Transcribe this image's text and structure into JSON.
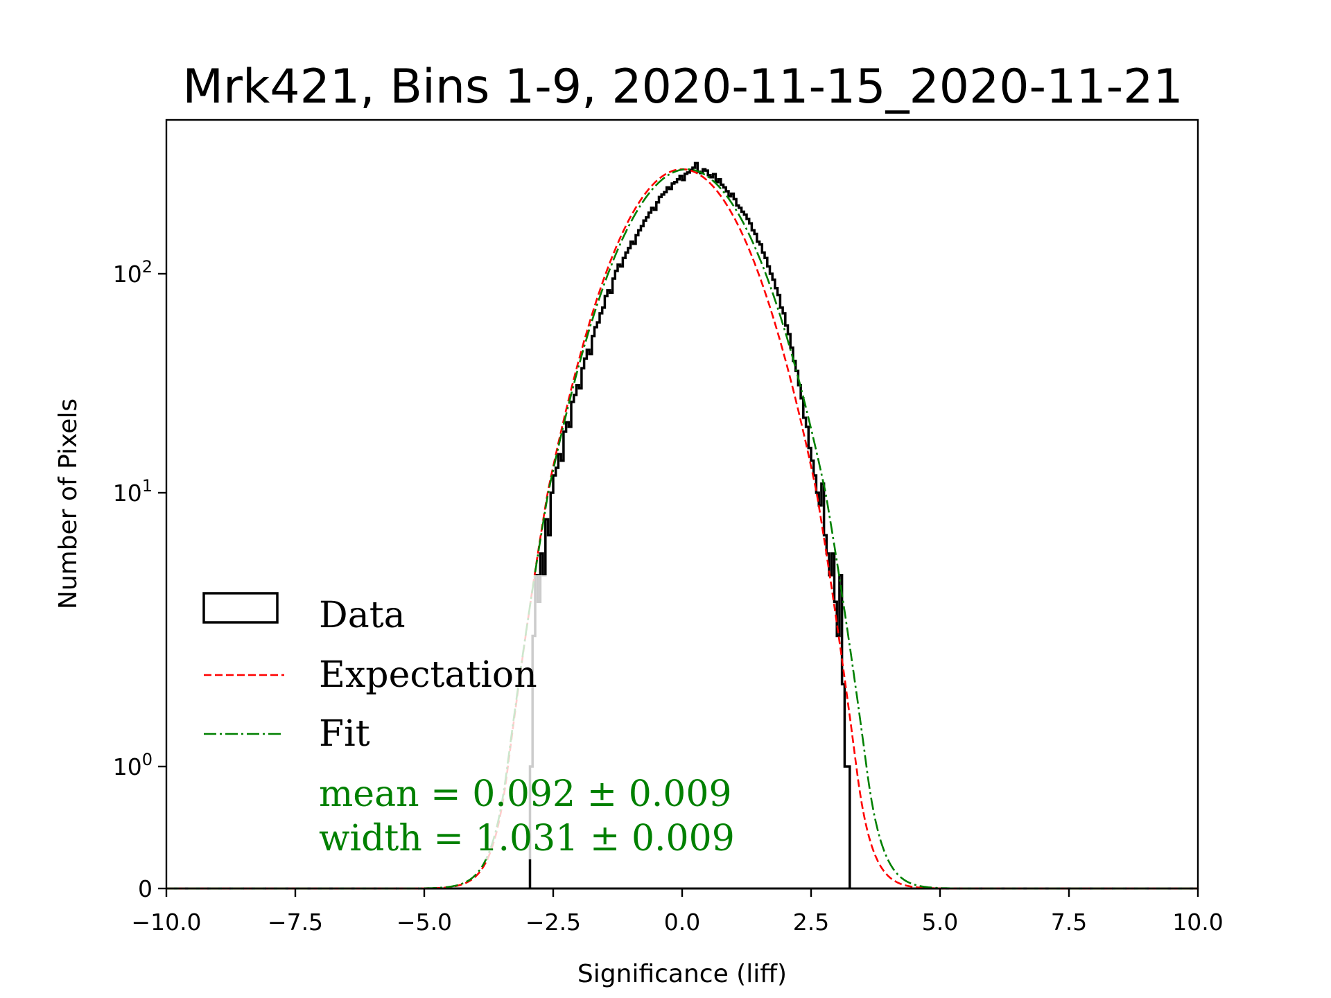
{
  "chart_data": {
    "type": "histogram",
    "title": "Mrk421, Bins 1-9, 2020-11-15_2020-11-21",
    "xlabel": "Significance (liff)",
    "ylabel": "Number of Pixels",
    "xlim": [
      -10,
      10
    ],
    "yscale": "symlog",
    "ylim": [
      0,
      500
    ],
    "grid": false,
    "x_ticks": [
      {
        "value": -10,
        "label": "−10.0"
      },
      {
        "value": -7.5,
        "label": "−7.5"
      },
      {
        "value": -5,
        "label": "−5.0"
      },
      {
        "value": -2.5,
        "label": "−2.5"
      },
      {
        "value": 0,
        "label": "0.0"
      },
      {
        "value": 2.5,
        "label": "2.5"
      },
      {
        "value": 5,
        "label": "5.0"
      },
      {
        "value": 7.5,
        "label": "7.5"
      },
      {
        "value": 10,
        "label": "10.0"
      }
    ],
    "y_ticks": [
      {
        "value": 0,
        "base": "0",
        "exp": ""
      },
      {
        "value": 1,
        "base": "10",
        "exp": "0"
      },
      {
        "value": 10,
        "base": "10",
        "exp": "1"
      },
      {
        "value": 100,
        "base": "10",
        "exp": "2"
      }
    ],
    "histogram": {
      "name": "Data",
      "color": "#000000",
      "bin_start": -2.95,
      "bin_width": 0.05,
      "counts": [
        1,
        3,
        5,
        4,
        6,
        5,
        8,
        7,
        10,
        12,
        13,
        15,
        14,
        19,
        21,
        20,
        26,
        28,
        31,
        30,
        37,
        41,
        45,
        43,
        52,
        57,
        60,
        66,
        70,
        79,
        84,
        82,
        95,
        103,
        110,
        108,
        118,
        125,
        131,
        140,
        137,
        150,
        158,
        165,
        175,
        181,
        190,
        200,
        196,
        212,
        224,
        230,
        236,
        248,
        244,
        258,
        262,
        270,
        280,
        268,
        286,
        290,
        298,
        305,
        320,
        292,
        288,
        300,
        296,
        282,
        276,
        285,
        262,
        270,
        255,
        248,
        238,
        226,
        232,
        219,
        205,
        200,
        192,
        186,
        178,
        170,
        158,
        152,
        140,
        136,
        125,
        118,
        108,
        100,
        94,
        86,
        80,
        70,
        66,
        58,
        53,
        46,
        40,
        36,
        31,
        27,
        22,
        20,
        16,
        14,
        12,
        10,
        9,
        11,
        7,
        6,
        5,
        6,
        4,
        3,
        5,
        2,
        1,
        1
      ]
    },
    "series": [
      {
        "name": "Expectation",
        "color": "#ff0000",
        "style": "dashed",
        "mean": 0.0,
        "width": 1.0,
        "amplitude": 300
      },
      {
        "name": "Fit",
        "color": "#008000",
        "style": "dashdot",
        "mean": 0.092,
        "width": 1.031,
        "amplitude": 300
      }
    ],
    "legend": {
      "placement": "lower-left",
      "entries": [
        {
          "label": "Data",
          "kind": "box"
        },
        {
          "label": "Expectation",
          "kind": "dashed"
        },
        {
          "label": "Fit",
          "kind": "dashdot"
        }
      ]
    },
    "annotations": [
      {
        "text": "mean = 0.092 ± 0.009",
        "color": "#008000"
      },
      {
        "text": "width = 1.031 ± 0.009",
        "color": "#008000"
      }
    ]
  }
}
